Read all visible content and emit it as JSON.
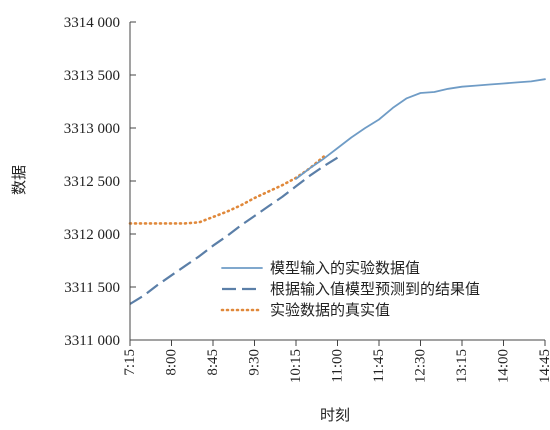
{
  "chart_data": {
    "type": "line",
    "xlabel": "时刻",
    "ylabel": "数据",
    "x_ticks": [
      "7:15",
      "8:00",
      "8:45",
      "9:30",
      "10:15",
      "11:00",
      "11:45",
      "12:30",
      "13:15",
      "14:00",
      "14:45"
    ],
    "y_ticks": [
      "3311 000",
      "3311 500",
      "3312 000",
      "3312 500",
      "3313 000",
      "3313 500",
      "3314 000"
    ],
    "ylim": [
      3311000,
      3314000
    ],
    "grid": false,
    "legend_position": "inside-lower-right",
    "series": [
      {
        "name": "模型输入的实验数据值",
        "style": "solid",
        "color": "#6f9cc6",
        "x": [
          "10:15",
          "10:30",
          "10:45",
          "11:00",
          "11:15",
          "11:30",
          "11:45",
          "12:00",
          "12:15",
          "12:30",
          "12:45",
          "13:00",
          "13:15",
          "13:30",
          "13:45",
          "14:00",
          "14:15",
          "14:30",
          "14:45"
        ],
        "y": [
          3312520,
          3312620,
          3312710,
          3312810,
          3312910,
          3313000,
          3313080,
          3313190,
          3313280,
          3313330,
          3313340,
          3313370,
          3313390,
          3313400,
          3313410,
          3313420,
          3313430,
          3313440,
          3313460
        ]
      },
      {
        "name": "根据输入值模型预测到的结果值",
        "style": "dashed",
        "color": "#5b7fa8",
        "x": [
          "7:15",
          "7:30",
          "7:45",
          "8:00",
          "8:15",
          "8:30",
          "8:45",
          "9:00",
          "9:15",
          "9:30",
          "9:45",
          "10:00",
          "10:15",
          "10:30",
          "10:45",
          "11:00"
        ],
        "y": [
          3311340,
          3311420,
          3311520,
          3311610,
          3311700,
          3311790,
          3311890,
          3311980,
          3312080,
          3312170,
          3312260,
          3312350,
          3312450,
          3312550,
          3312640,
          3312720
        ]
      },
      {
        "name": "实验数据的真实值",
        "style": "dotted",
        "color": "#e0883a",
        "x": [
          "7:15",
          "7:30",
          "7:45",
          "8:00",
          "8:15",
          "8:30",
          "8:45",
          "9:00",
          "9:15",
          "9:30",
          "9:45",
          "10:00",
          "10:15",
          "10:30",
          "10:45"
        ],
        "y": [
          3312100,
          3312100,
          3312100,
          3312100,
          3312100,
          3312110,
          3312160,
          3312210,
          3312270,
          3312340,
          3312400,
          3312460,
          3312530,
          3312620,
          3312730
        ]
      }
    ]
  }
}
